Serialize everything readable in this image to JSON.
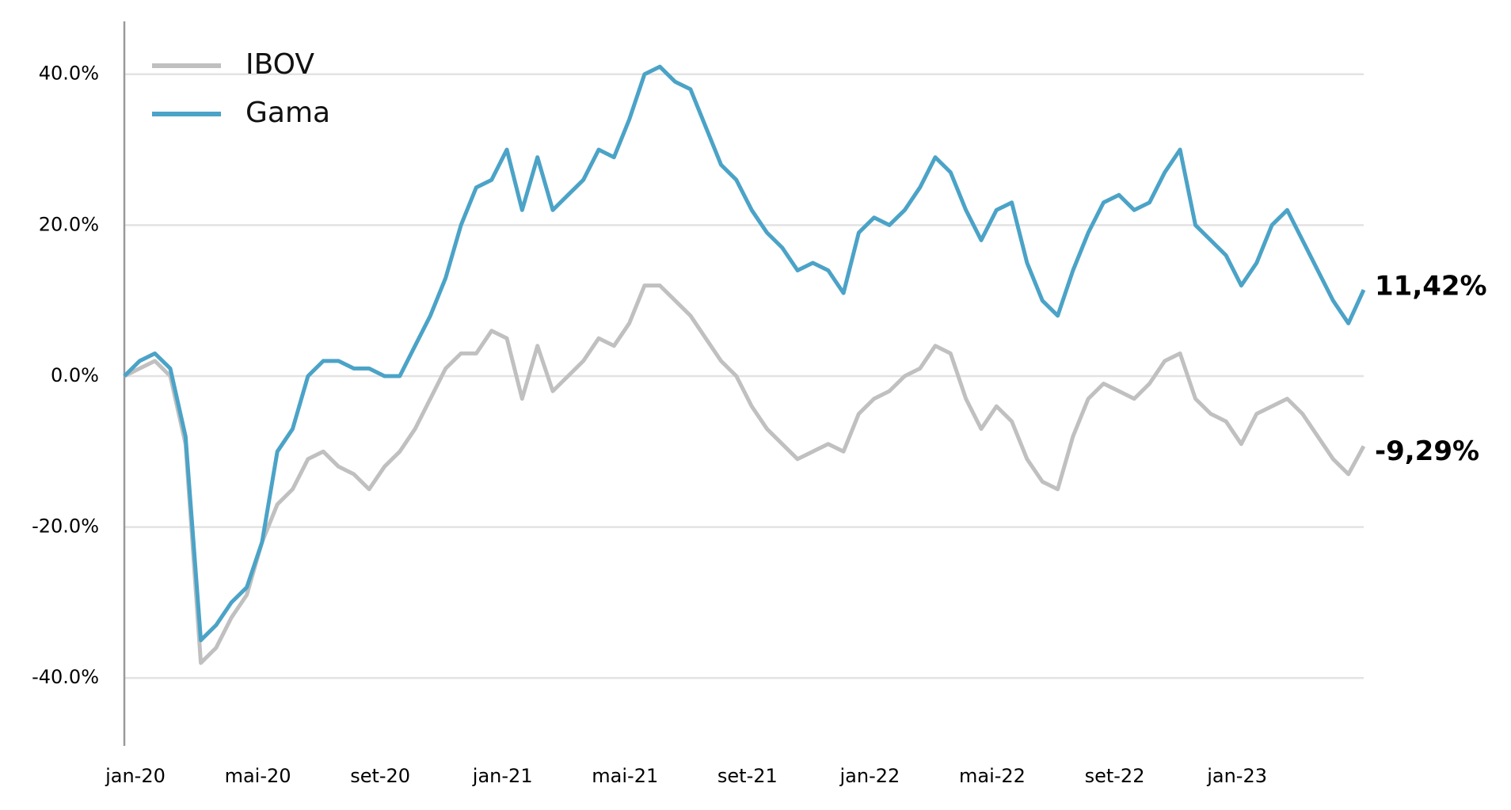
{
  "chart_data": {
    "type": "line",
    "categories": [
      "jan-20",
      null,
      null,
      null,
      null,
      null,
      null,
      null,
      "mai-20",
      null,
      null,
      null,
      null,
      null,
      null,
      null,
      "set-20",
      null,
      null,
      null,
      null,
      null,
      null,
      null,
      "jan-21",
      null,
      null,
      null,
      null,
      null,
      null,
      null,
      "mai-21",
      null,
      null,
      null,
      null,
      null,
      null,
      null,
      "set-21",
      null,
      null,
      null,
      null,
      null,
      null,
      null,
      "jan-22",
      null,
      null,
      null,
      null,
      null,
      null,
      null,
      "mai-22",
      null,
      null,
      null,
      null,
      null,
      null,
      null,
      "set-22",
      null,
      null,
      null,
      null,
      null,
      null,
      null,
      "jan-23",
      null,
      null,
      null,
      null,
      null,
      null,
      null,
      null,
      null
    ],
    "series": [
      {
        "name": "IBOV",
        "color": "#c0c0c0",
        "values": [
          0,
          1,
          2,
          0,
          -9,
          -38,
          -36,
          -32,
          -29,
          -22,
          -17,
          -15,
          -11,
          -10,
          -12,
          -13,
          -15,
          -12,
          -10,
          -7,
          -3,
          1,
          3,
          3,
          6,
          5,
          -3,
          4,
          -2,
          0,
          2,
          5,
          4,
          7,
          12,
          12,
          10,
          8,
          5,
          2,
          0,
          -4,
          -7,
          -9,
          -11,
          -10,
          -9,
          -10,
          -5,
          -3,
          -2,
          0,
          1,
          4,
          3,
          -3,
          -7,
          -4,
          -6,
          -11,
          -14,
          -15,
          -8,
          -3,
          -1,
          -2,
          -3,
          -1,
          2,
          3,
          -3,
          -5,
          -6,
          -9,
          -5,
          -4,
          -3,
          -5,
          -8,
          -11,
          -13,
          -9.29
        ],
        "end_label": "-9,29%"
      },
      {
        "name": "Gama",
        "color": "#4ba3c7",
        "values": [
          0,
          2,
          3,
          1,
          -8,
          -35,
          -33,
          -30,
          -28,
          -22,
          -10,
          -7,
          0,
          2,
          2,
          1,
          1,
          0,
          0,
          4,
          8,
          13,
          20,
          25,
          26,
          30,
          22,
          29,
          22,
          24,
          26,
          30,
          29,
          34,
          40,
          41,
          39,
          38,
          33,
          28,
          26,
          22,
          19,
          17,
          14,
          15,
          14,
          11,
          19,
          21,
          20,
          22,
          25,
          29,
          27,
          22,
          18,
          22,
          23,
          15,
          10,
          8,
          14,
          19,
          23,
          24,
          22,
          23,
          27,
          30,
          20,
          18,
          16,
          12,
          15,
          20,
          22,
          18,
          14,
          10,
          7,
          11.42
        ],
        "end_label": "11,42%"
      }
    ],
    "ylim": [
      -49,
      47
    ],
    "yticks": [
      {
        "value": -40,
        "label": "-40.0%"
      },
      {
        "value": -20,
        "label": "-20.0%"
      },
      {
        "value": 0,
        "label": "0.0%"
      },
      {
        "value": 20,
        "label": "20.0%"
      },
      {
        "value": 40,
        "label": "40.0%"
      }
    ],
    "grid": true,
    "legend": "top-left"
  }
}
